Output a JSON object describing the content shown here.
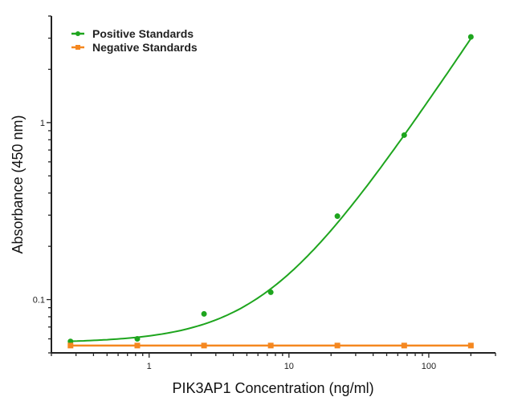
{
  "chart_data": {
    "type": "scatter",
    "title": "",
    "xlabel": "PIK3AP1 Concentration (ng/ml)",
    "ylabel": "Absorbance (450 nm)",
    "x_scale": "log",
    "y_scale": "log",
    "xlim": [
      0.2,
      300
    ],
    "ylim": [
      0.05,
      4
    ],
    "x_ticks": [
      {
        "value": 1,
        "label": "1"
      },
      {
        "value": 10,
        "label": "10"
      },
      {
        "value": 100,
        "label": "100"
      }
    ],
    "y_ticks": [
      {
        "value": 0.1,
        "label": "0.1"
      },
      {
        "value": 1,
        "label": "1"
      }
    ],
    "grid": false,
    "legend_position": "top-left",
    "series": [
      {
        "name": "Positive Standards",
        "color": "#1ea51e",
        "marker": "circle",
        "fit_curve": true,
        "x": [
          0.274,
          0.823,
          2.47,
          7.41,
          22.2,
          66.7,
          200
        ],
        "y": [
          0.058,
          0.06,
          0.083,
          0.11,
          0.296,
          0.85,
          3.05
        ]
      },
      {
        "name": "Negative Standards",
        "color": "#f5871f",
        "marker": "square",
        "fit_curve": false,
        "x": [
          0.274,
          0.823,
          2.47,
          7.41,
          22.2,
          66.7,
          200
        ],
        "y": [
          0.055,
          0.055,
          0.055,
          0.055,
          0.055,
          0.055,
          0.055
        ]
      }
    ]
  }
}
